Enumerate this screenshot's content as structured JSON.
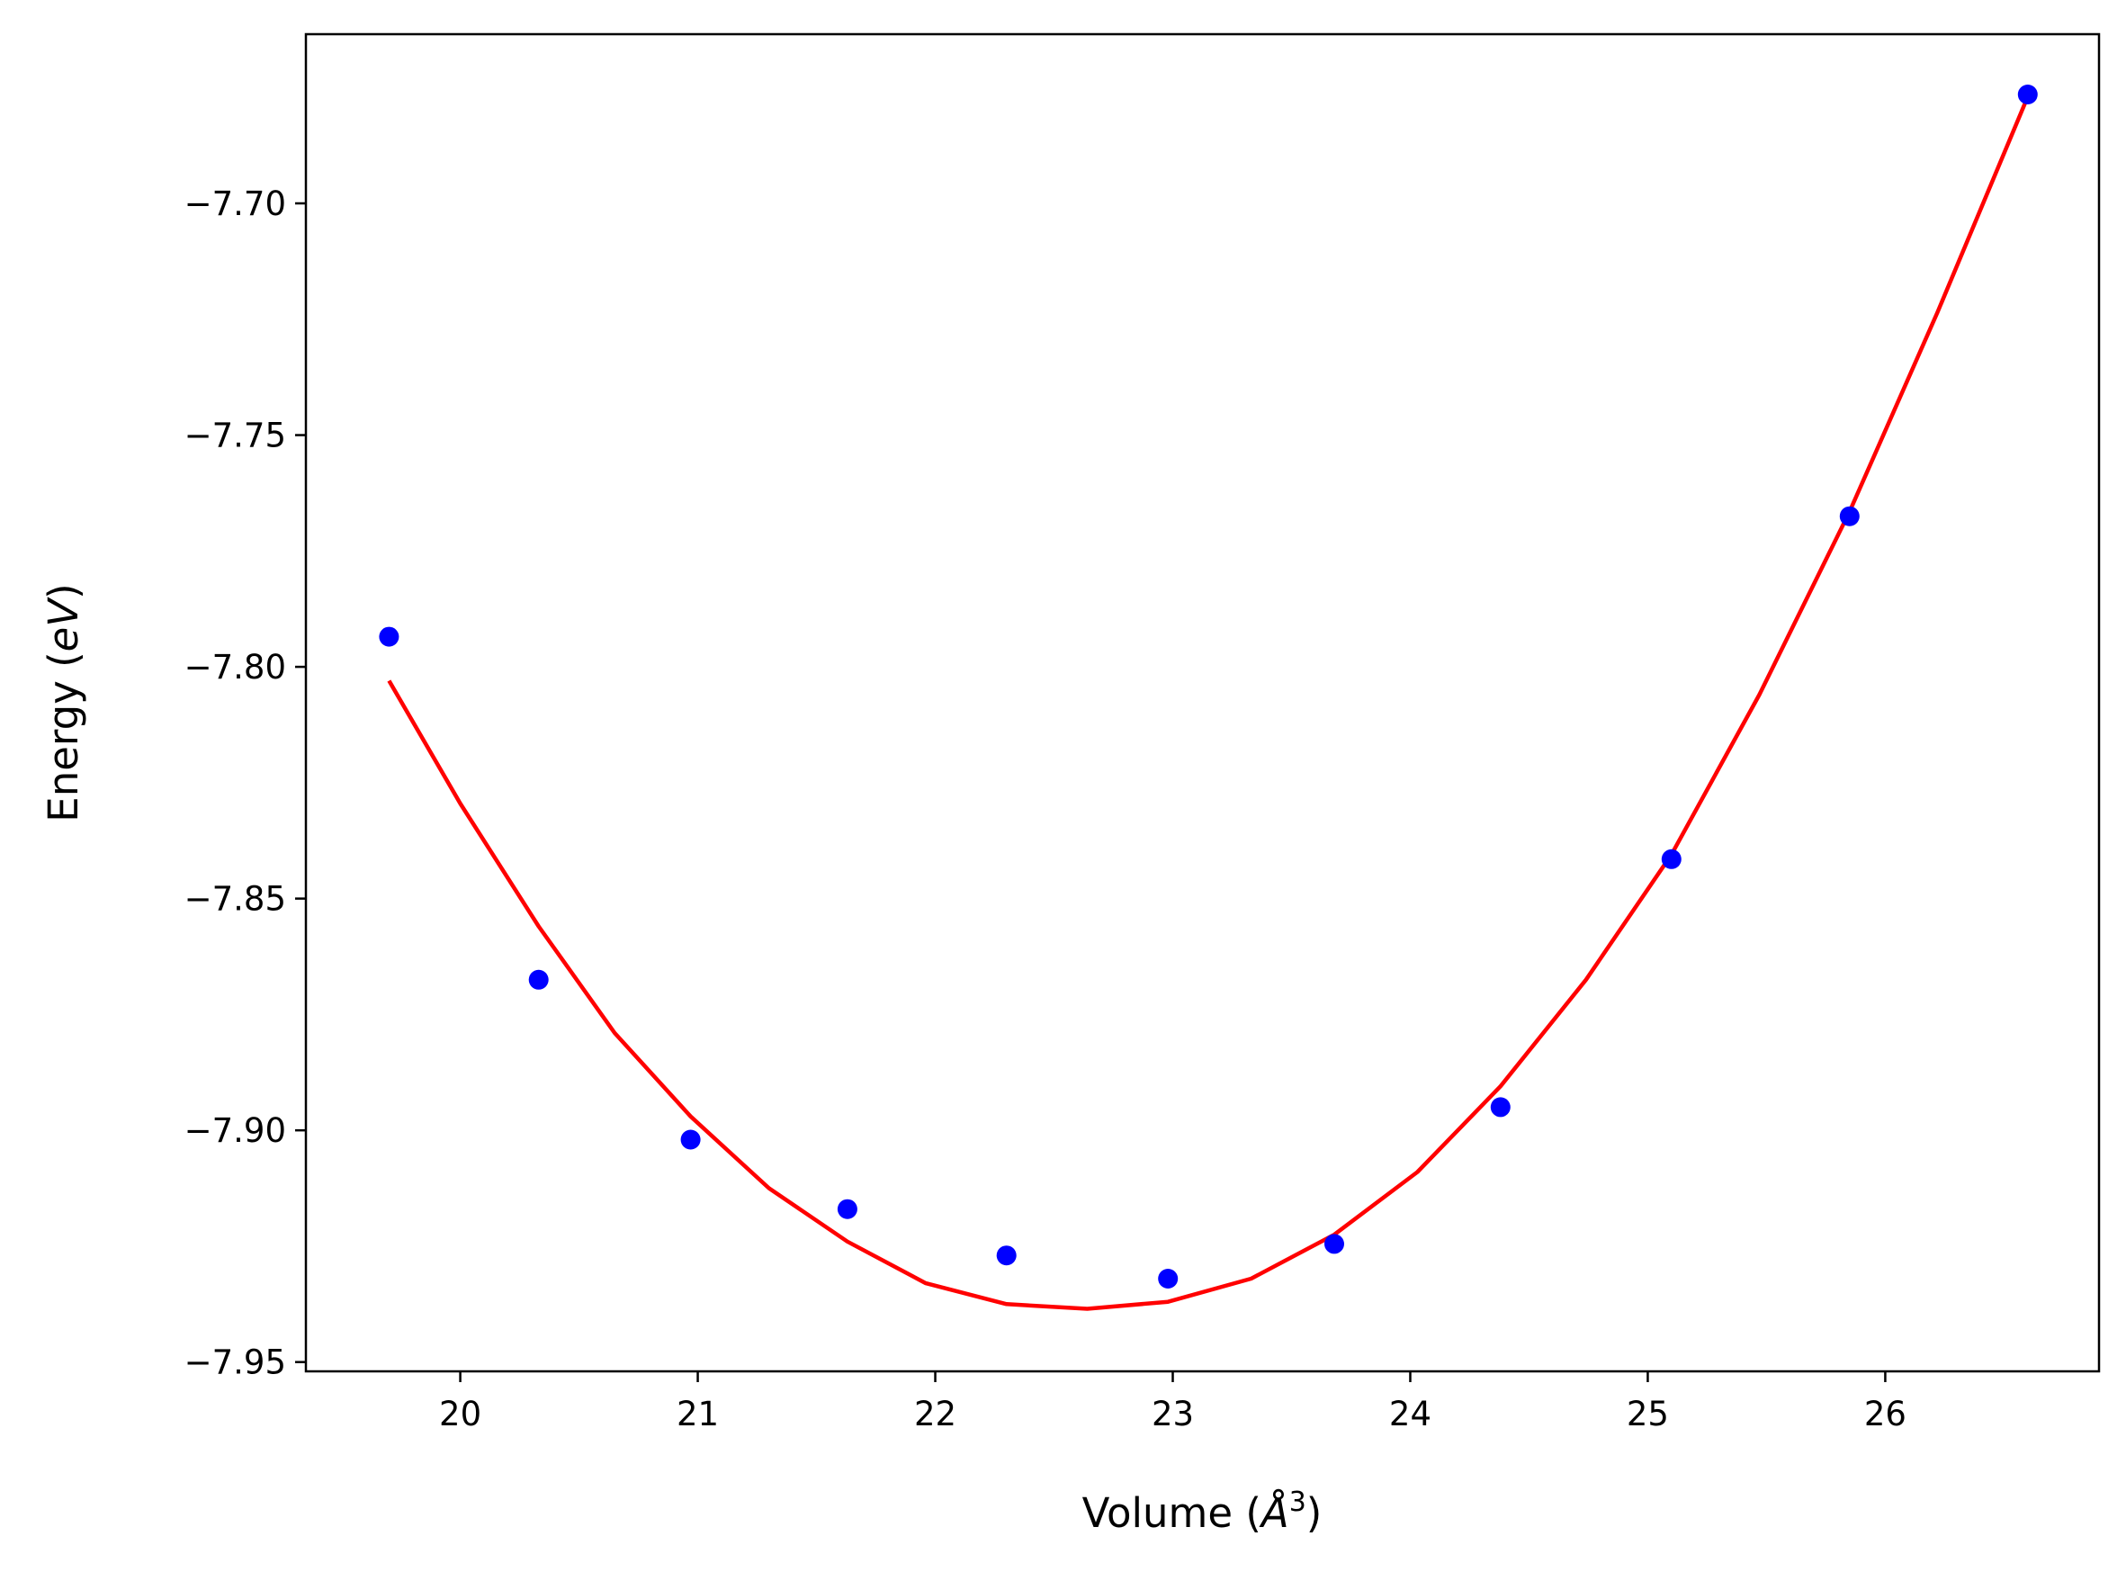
{
  "chart_data": {
    "type": "scatter",
    "title": "",
    "xlabel": {
      "text": "Volume (",
      "symbol": "Å",
      "sup": "3",
      "tail": ")"
    },
    "ylabel": {
      "text": "Energy (",
      "unit": "eV",
      "tail": ")"
    },
    "xlim": [
      19.35,
      26.9
    ],
    "ylim": [
      -7.952,
      -7.6635
    ],
    "xticks": [
      20,
      21,
      22,
      23,
      24,
      25,
      26
    ],
    "yticks": [
      -7.7,
      -7.75,
      -7.8,
      -7.85,
      -7.9,
      -7.95
    ],
    "xtick_labels": [
      "20",
      "21",
      "22",
      "23",
      "24",
      "25",
      "26"
    ],
    "ytick_labels": [
      "−7.70",
      "−7.75",
      "−7.80",
      "−7.85",
      "−7.90",
      "−7.95"
    ],
    "grid": false,
    "series": [
      {
        "kind": "points",
        "color": "#0000ff",
        "x": [
          19.7,
          20.33,
          20.97,
          21.63,
          22.3,
          22.98,
          23.68,
          24.38,
          25.1,
          25.85,
          26.6
        ],
        "y": [
          -7.7935,
          -7.8675,
          -7.902,
          -7.917,
          -7.927,
          -7.932,
          -7.9245,
          -7.895,
          -7.8415,
          -7.7675,
          -7.6765
        ]
      },
      {
        "kind": "fit-curve",
        "color": "#ff0000",
        "x": [
          19.7,
          20.0,
          20.33,
          20.65,
          20.97,
          21.3,
          21.63,
          21.96,
          22.3,
          22.64,
          22.98,
          23.33,
          23.68,
          24.03,
          24.38,
          24.74,
          25.1,
          25.47,
          25.85,
          26.22,
          26.6
        ],
        "y": [
          -7.803,
          -7.8295,
          -7.856,
          -7.879,
          -7.897,
          -7.9125,
          -7.924,
          -7.933,
          -7.9375,
          -7.9385,
          -7.937,
          -7.932,
          -7.9225,
          -7.909,
          -7.8905,
          -7.8675,
          -7.8405,
          -7.806,
          -7.7665,
          -7.7235,
          -7.677
        ]
      }
    ]
  }
}
